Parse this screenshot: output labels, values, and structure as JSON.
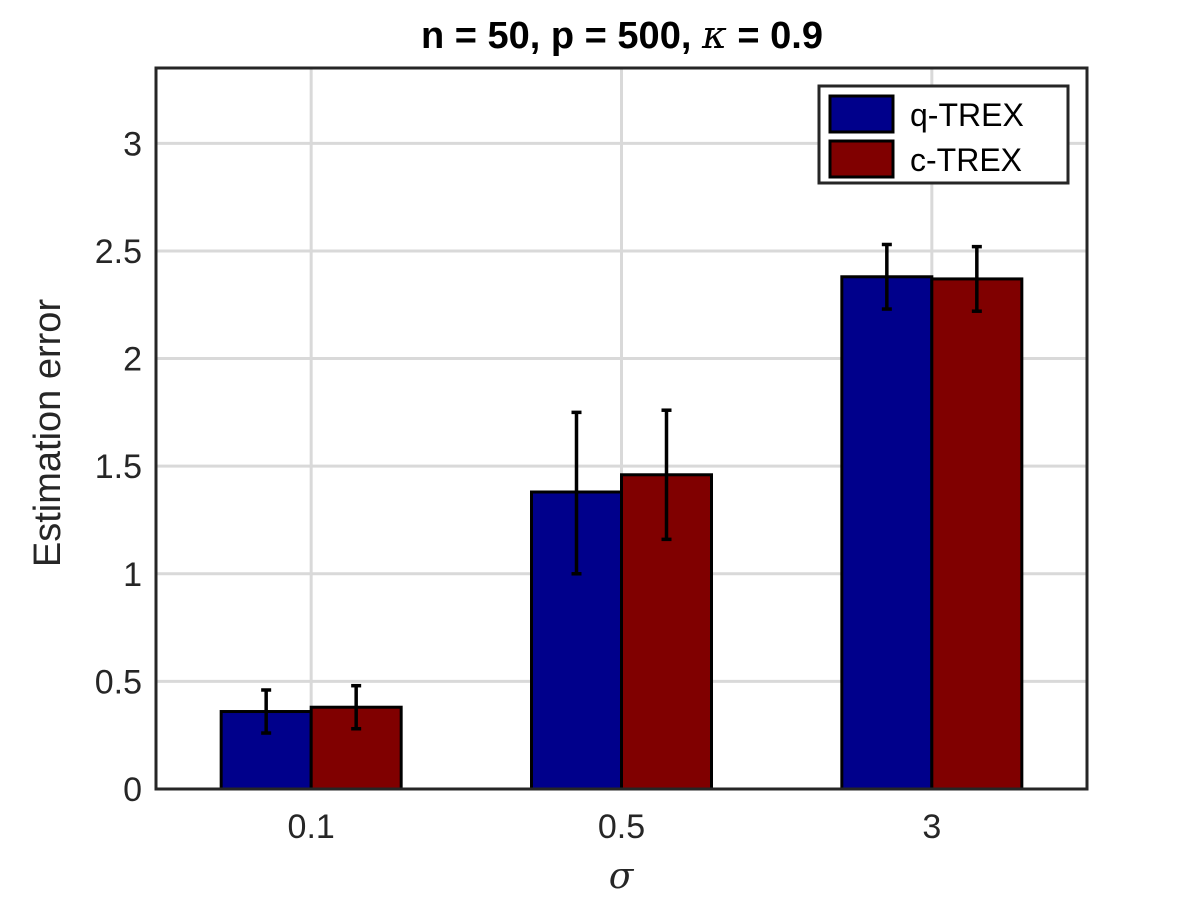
{
  "chart_data": {
    "type": "bar",
    "title_prefix": "n = 50, p = 500, ",
    "title_symbol": "κ",
    "title_suffix": " = 0.9",
    "xlabel": "σ",
    "ylabel": "Estimation error",
    "categories": [
      "0.1",
      "0.5",
      "3"
    ],
    "ylim": [
      0,
      3.35
    ],
    "yticks": [
      0,
      0.5,
      1,
      1.5,
      2,
      2.5,
      3
    ],
    "ytick_labels": [
      "0",
      "0.5",
      "1",
      "1.5",
      "2",
      "2.5",
      "3"
    ],
    "grid": true,
    "legend_position": "top-right",
    "series": [
      {
        "name": "q-TREX",
        "color": "#00008B",
        "values": [
          0.36,
          1.38,
          2.38
        ],
        "err_low": [
          0.26,
          1.0,
          2.23
        ],
        "err_high": [
          0.46,
          1.75,
          2.53
        ]
      },
      {
        "name": "c-TREX",
        "color": "#800000",
        "values": [
          0.38,
          1.46,
          2.37
        ],
        "err_low": [
          0.28,
          1.16,
          2.22
        ],
        "err_high": [
          0.48,
          1.76,
          2.52
        ]
      }
    ]
  }
}
